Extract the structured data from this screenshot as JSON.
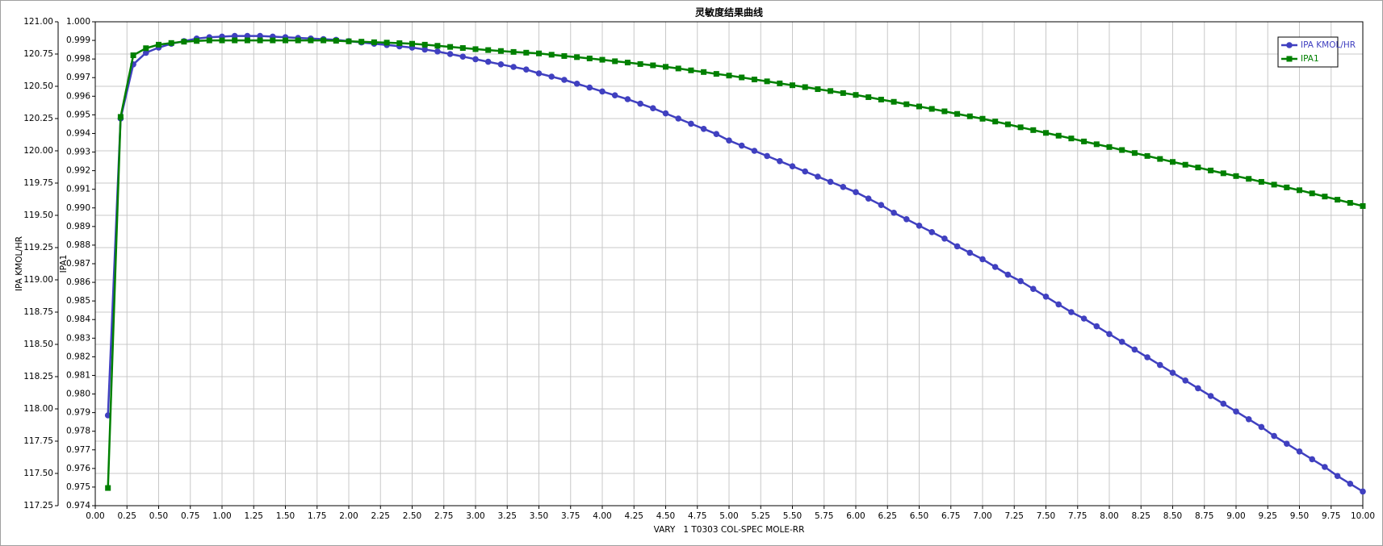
{
  "chart_data": {
    "type": "line",
    "title": "灵敏度结果曲线",
    "xlabel": "VARY   1 T0303 COL-SPEC MOLE-RR",
    "ylabel": "IPA KMOL/HR",
    "y2label": "IPA1",
    "x": [
      0.1,
      0.2,
      0.3,
      0.4,
      0.5,
      0.6,
      0.7,
      0.8,
      0.9,
      1.0,
      1.1,
      1.2,
      1.3,
      1.4,
      1.5,
      1.6,
      1.7,
      1.8,
      1.9,
      2.0,
      2.1,
      2.2,
      2.3,
      2.4,
      2.5,
      2.6,
      2.7,
      2.8,
      2.9,
      3.0,
      3.1,
      3.2,
      3.3,
      3.4,
      3.5,
      3.6,
      3.7,
      3.8,
      3.9,
      4.0,
      4.1,
      4.2,
      4.3,
      4.4,
      4.5,
      4.6,
      4.7,
      4.8,
      4.9,
      5.0,
      5.1,
      5.2,
      5.3,
      5.4,
      5.5,
      5.6,
      5.7,
      5.8,
      5.9,
      6.0,
      6.1,
      6.2,
      6.3,
      6.4,
      6.5,
      6.6,
      6.7,
      6.8,
      6.9,
      7.0,
      7.1,
      7.2,
      7.3,
      7.4,
      7.5,
      7.6,
      7.7,
      7.8,
      7.9,
      8.0,
      8.1,
      8.2,
      8.3,
      8.4,
      8.5,
      8.6,
      8.7,
      8.8,
      8.9,
      9.0,
      9.1,
      9.2,
      9.3,
      9.4,
      9.5,
      9.6,
      9.7,
      9.8,
      9.9,
      10.0
    ],
    "series": [
      {
        "name": "IPA KMOL/HR",
        "color": "#4040c0",
        "marker": "circle",
        "values": [
          117.95,
          120.25,
          120.67,
          120.76,
          120.8,
          120.83,
          120.85,
          120.87,
          120.88,
          120.885,
          120.89,
          120.89,
          120.89,
          120.885,
          120.88,
          120.875,
          120.87,
          120.865,
          120.86,
          120.85,
          120.84,
          120.83,
          120.82,
          120.81,
          120.8,
          120.785,
          120.77,
          120.75,
          120.73,
          120.71,
          120.69,
          120.67,
          120.65,
          120.63,
          120.6,
          120.575,
          120.55,
          120.52,
          120.49,
          120.46,
          120.43,
          120.4,
          120.365,
          120.33,
          120.29,
          120.25,
          120.21,
          120.17,
          120.13,
          120.08,
          120.04,
          120.0,
          119.96,
          119.92,
          119.88,
          119.84,
          119.8,
          119.76,
          119.72,
          119.68,
          119.63,
          119.58,
          119.52,
          119.47,
          119.42,
          119.37,
          119.32,
          119.26,
          119.21,
          119.16,
          119.1,
          119.04,
          118.99,
          118.93,
          118.87,
          118.81,
          118.75,
          118.7,
          118.64,
          118.58,
          118.52,
          118.46,
          118.4,
          118.34,
          118.28,
          118.22,
          118.16,
          118.1,
          118.04,
          117.98,
          117.92,
          117.86,
          117.79,
          117.73,
          117.67,
          117.61,
          117.55,
          117.48,
          117.42,
          117.36
        ]
      },
      {
        "name": "IPA1",
        "color": "#008000",
        "marker": "square",
        "axis": "y2",
        "values": [
          0.97495,
          0.99489,
          0.9982,
          0.99858,
          0.99877,
          0.99886,
          0.99893,
          0.99897,
          0.999,
          0.999,
          0.999,
          0.999,
          0.999,
          0.999,
          0.999,
          0.999,
          0.999,
          0.999,
          0.99898,
          0.99895,
          0.99893,
          0.9989,
          0.99888,
          0.99885,
          0.99882,
          0.99877,
          0.99871,
          0.99865,
          0.99859,
          0.99853,
          0.99848,
          0.99843,
          0.99838,
          0.99834,
          0.9983,
          0.99823,
          0.99816,
          0.9981,
          0.99803,
          0.99796,
          0.99788,
          0.99781,
          0.99773,
          0.99766,
          0.99758,
          0.99749,
          0.99739,
          0.9973,
          0.9972,
          0.99711,
          0.99701,
          0.9969,
          0.9968,
          0.99669,
          0.99659,
          0.99649,
          0.99638,
          0.99628,
          0.99617,
          0.99607,
          0.99595,
          0.99582,
          0.9957,
          0.99557,
          0.99545,
          0.99532,
          0.99519,
          0.99505,
          0.99492,
          0.99479,
          0.99464,
          0.99449,
          0.99433,
          0.99418,
          0.99403,
          0.99388,
          0.99373,
          0.99357,
          0.99342,
          0.99327,
          0.99311,
          0.99295,
          0.99279,
          0.99263,
          0.99247,
          0.99232,
          0.99217,
          0.99201,
          0.99186,
          0.99171,
          0.99156,
          0.9914,
          0.99125,
          0.9911,
          0.99095,
          0.99078,
          0.99061,
          0.99044,
          0.99027,
          0.9901
        ]
      }
    ],
    "xlim": [
      0,
      10
    ],
    "xticks": [
      {
        "value": 0,
        "label": "0.00"
      },
      0.25,
      {
        "value": 0.5,
        "label": "0.50"
      },
      0.75,
      {
        "value": 1,
        "label": "1.00"
      },
      1.25,
      {
        "value": 1.5,
        "label": "1.50"
      },
      1.75,
      {
        "value": 2,
        "label": "2.00"
      },
      2.25,
      {
        "value": 2.5,
        "label": "2.50"
      },
      2.75,
      {
        "value": 3,
        "label": "3.00"
      },
      3.25,
      {
        "value": 3.5,
        "label": "3.50"
      },
      3.75,
      {
        "value": 4,
        "label": "4.00"
      },
      4.25,
      {
        "value": 4.5,
        "label": "4.50"
      },
      4.75,
      {
        "value": 5,
        "label": "5.00"
      },
      5.25,
      {
        "value": 5.5,
        "label": "5.50"
      },
      5.75,
      {
        "value": 6,
        "label": "6.00"
      },
      6.25,
      {
        "value": 6.5,
        "label": "6.50"
      },
      6.75,
      {
        "value": 7,
        "label": "7.00"
      },
      7.25,
      {
        "value": 7.5,
        "label": "7.50"
      },
      7.75,
      {
        "value": 8,
        "label": "8.00"
      },
      8.25,
      {
        "value": 8.5,
        "label": "8.50"
      },
      8.75,
      {
        "value": 9,
        "label": "9.00"
      },
      9.25,
      {
        "value": 9.5,
        "label": "9.50"
      },
      9.75,
      {
        "value": 10,
        "label": "10.00"
      }
    ],
    "ylim": [
      117.25,
      121
    ],
    "yticks": [
      117.25,
      {
        "value": 117.5,
        "label": "117.50"
      },
      117.75,
      {
        "value": 118,
        "label": "118.00"
      },
      118.25,
      {
        "value": 118.5,
        "label": "118.50"
      },
      118.75,
      {
        "value": 119,
        "label": "119.00"
      },
      119.25,
      {
        "value": 119.5,
        "label": "119.50"
      },
      119.75,
      {
        "value": 120,
        "label": "120.00"
      },
      120.25,
      {
        "value": 120.5,
        "label": "120.50"
      },
      120.75,
      {
        "value": 121,
        "label": "121.00"
      }
    ],
    "y2lim": [
      0.974,
      1
    ],
    "y2ticks": [
      0.974,
      0.975,
      0.976,
      0.977,
      0.978,
      0.979,
      {
        "value": 0.98,
        "label": "0.980"
      },
      0.981,
      0.982,
      0.983,
      0.984,
      0.985,
      0.986,
      0.987,
      0.988,
      0.989,
      {
        "value": 0.99,
        "label": "0.990"
      },
      0.991,
      0.992,
      0.993,
      0.994,
      0.995,
      0.996,
      0.997,
      0.998,
      0.999,
      {
        "value": 1,
        "label": "1.000"
      }
    ],
    "grid": true,
    "legend": "upper right"
  }
}
